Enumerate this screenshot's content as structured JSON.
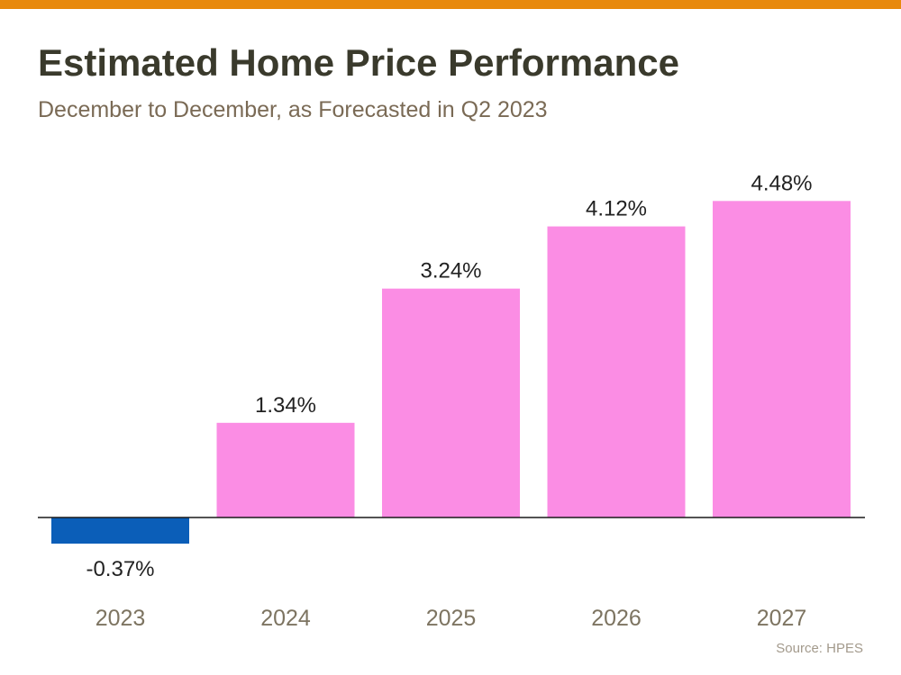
{
  "header": {
    "title": "Estimated Home Price Performance",
    "subtitle": "December to December, as Forecasted in Q2 2023"
  },
  "footer": {
    "source": "Source: HPES"
  },
  "colors": {
    "accent_bar": "#e8890c",
    "positive_bar": "#fb8de4",
    "negative_bar": "#0b5eb8",
    "baseline": "#1a1a1a",
    "value_label": "#222222",
    "category_label": "#7d7461"
  },
  "chart_data": {
    "type": "bar",
    "title": "Estimated Home Price Performance",
    "subtitle": "December to December, as Forecasted in Q2 2023",
    "categories": [
      "2023",
      "2024",
      "2025",
      "2026",
      "2027"
    ],
    "values": [
      -0.37,
      1.34,
      3.24,
      4.12,
      4.48
    ],
    "value_labels": [
      "-0.37%",
      "1.34%",
      "3.24%",
      "4.12%",
      "4.48%"
    ],
    "unit": "%",
    "grid": false,
    "legend": "none"
  }
}
